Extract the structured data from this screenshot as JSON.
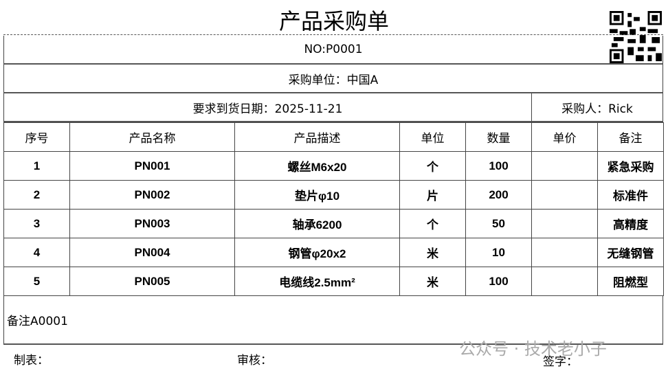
{
  "title": "产品采购单",
  "no": "NO:P0001",
  "unit": "采购单位：中国A",
  "date": "要求到货日期：2025-11-21",
  "buyer": "采购人：Rick",
  "headers": [
    "序号",
    "产品名称",
    "产品描述",
    "单位",
    "数量",
    "单价",
    "备注"
  ],
  "rows": [
    [
      "1",
      "PN001",
      "螺丝M6x20",
      "个",
      "100",
      "",
      "紧急采购"
    ],
    [
      "2",
      "PN002",
      "垫片φ10",
      "片",
      "200",
      "",
      "标准件"
    ],
    [
      "3",
      "PN003",
      "轴承6200",
      "个",
      "50",
      "",
      "高精度"
    ],
    [
      "4",
      "PN004",
      "钢管φ20x2",
      "米",
      "10",
      "",
      "无缝钢管"
    ],
    [
      "5",
      "PN005",
      "电缆线2.5mm²",
      "米",
      "100",
      "",
      "阻燃型"
    ]
  ],
  "remark": "备注A0001",
  "footer": {
    "maker": "制表：",
    "reviewer": "审核：",
    "signature": "签字："
  },
  "watermark": "公众号 · 技术老小子"
}
